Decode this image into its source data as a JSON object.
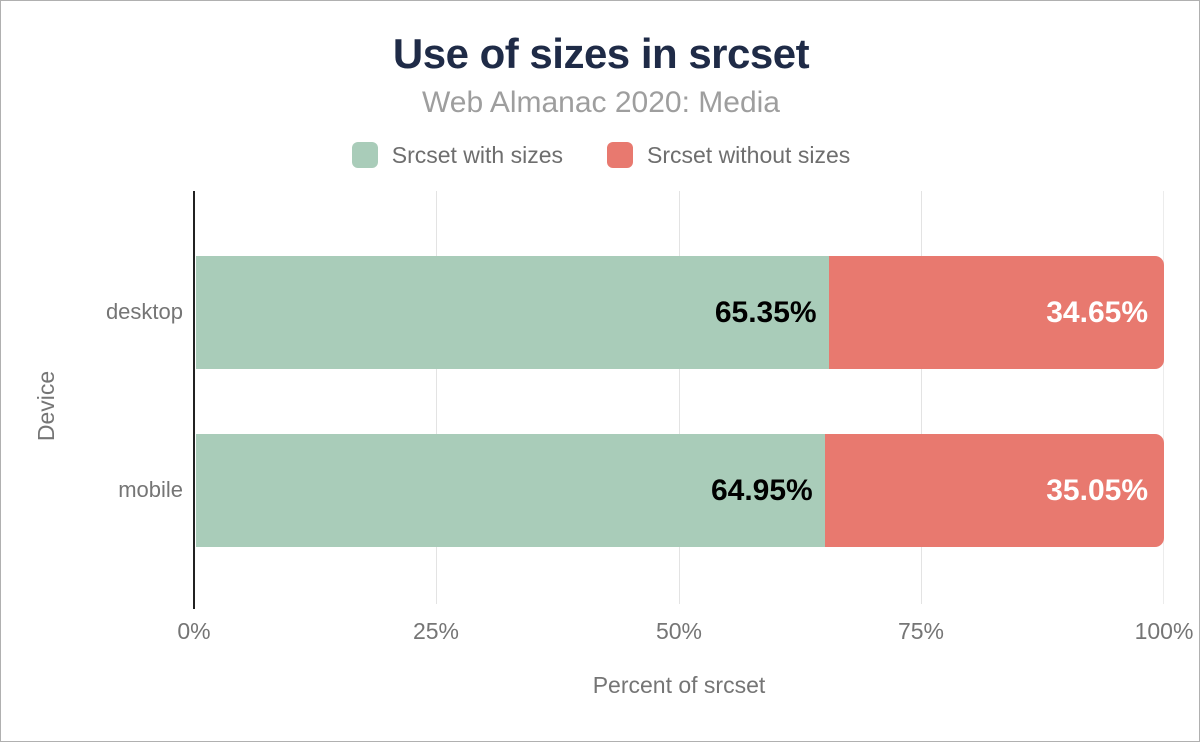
{
  "chart_data": {
    "type": "bar",
    "orientation": "horizontal",
    "stacked": true,
    "title": "Use of sizes in srcset",
    "subtitle": "Web Almanac 2020: Media",
    "xlabel": "Percent of srcset",
    "ylabel": "Device",
    "categories": [
      "desktop",
      "mobile"
    ],
    "series": [
      {
        "name": "Srcset with sizes",
        "color": "#a9ccb9",
        "values": [
          65.35,
          64.95
        ],
        "labels": [
          "65.35%",
          "64.95%"
        ],
        "label_color": "#000000"
      },
      {
        "name": "Srcset without sizes",
        "color": "#e8796f",
        "values": [
          34.65,
          35.05
        ],
        "labels": [
          "34.65%",
          "35.05%"
        ],
        "label_color": "#ffffff"
      }
    ],
    "x_ticks": [
      "0%",
      "25%",
      "50%",
      "75%",
      "100%"
    ],
    "xlim": [
      0,
      100
    ],
    "grid": true,
    "legend_position": "top"
  },
  "colors": {
    "title": "#1f2b47",
    "subtitle": "#9e9e9e",
    "axis_text": "#757575",
    "legend_text": "#6e6e6e",
    "grid_line": "#e3e3e3",
    "axis_line": "#212121",
    "background": "#ffffff",
    "frame_border": "#b0b0b0"
  }
}
